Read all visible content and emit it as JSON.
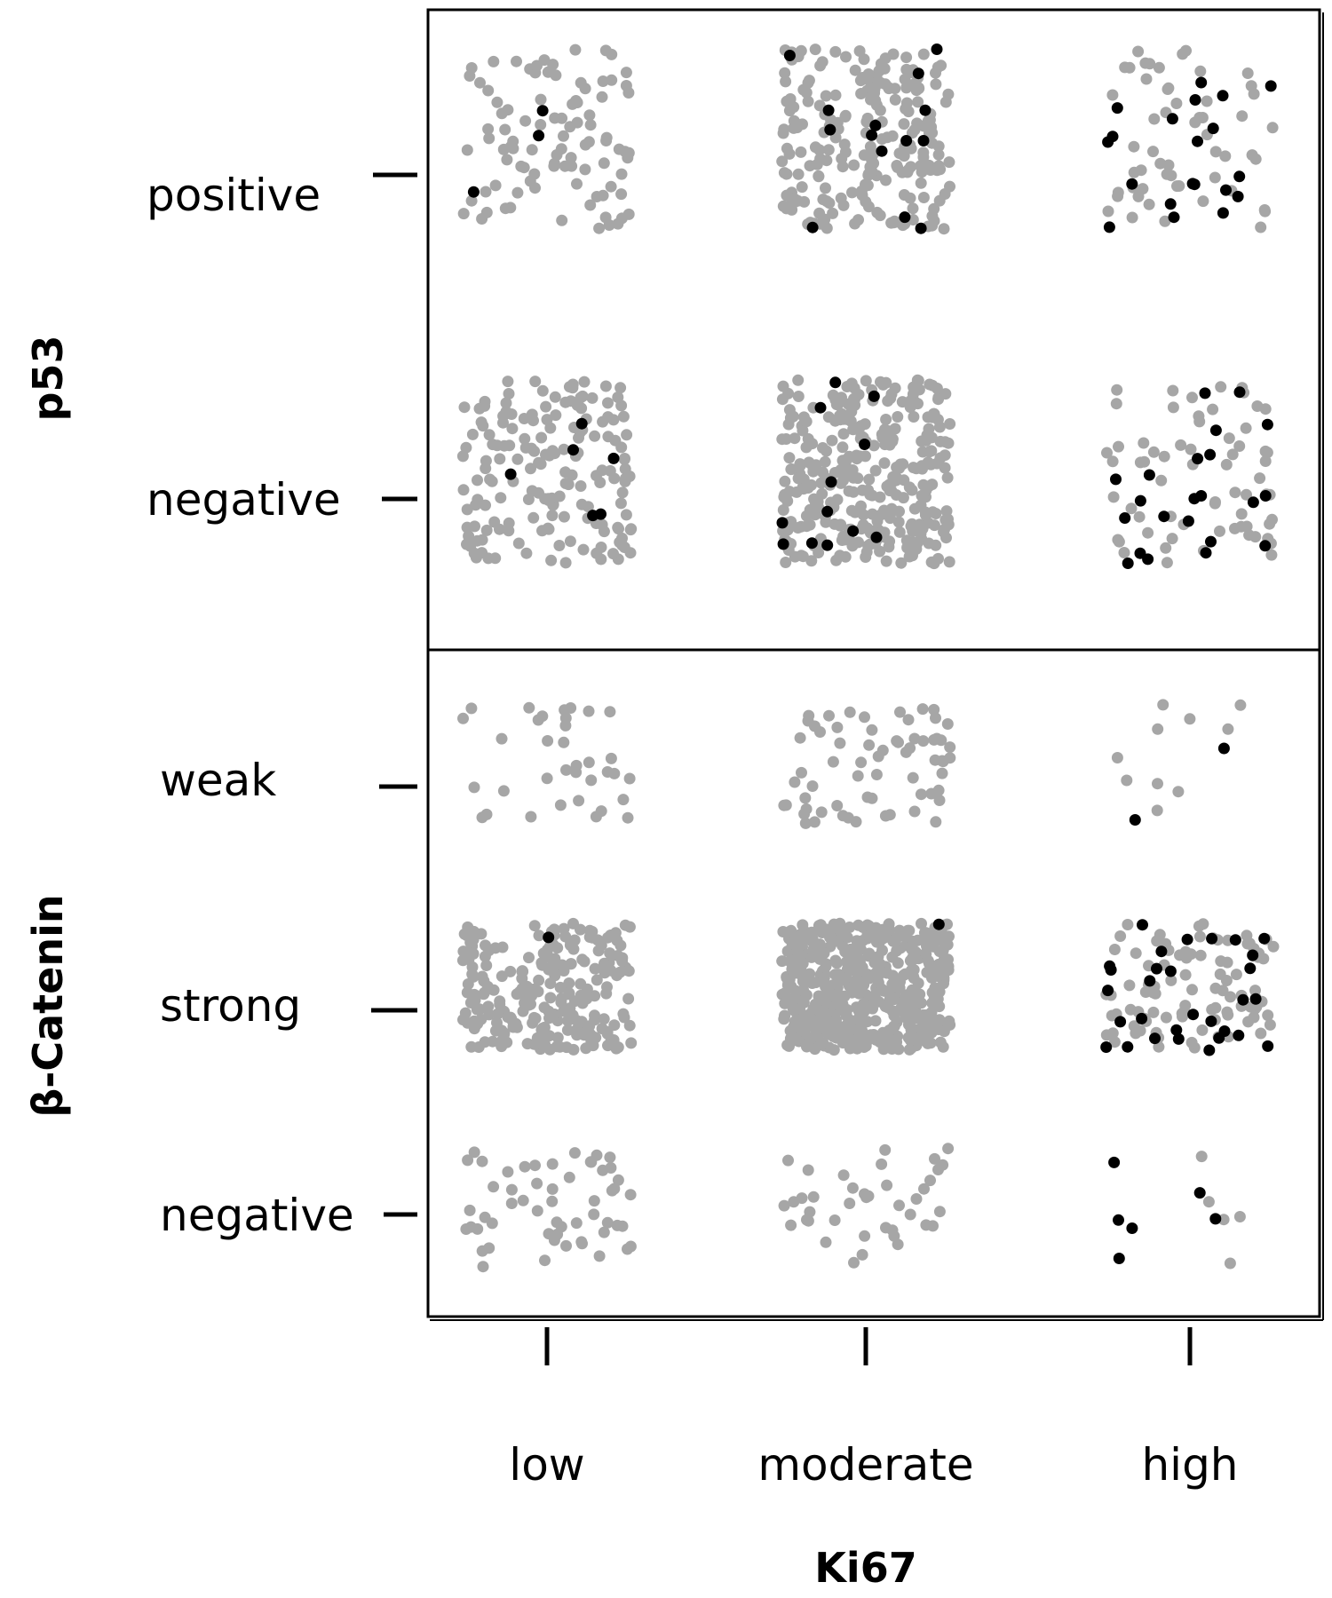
{
  "chart_data": {
    "type": "scatter",
    "x_axis": {
      "title": "Ki67",
      "categories": [
        "low",
        "moderate",
        "high"
      ]
    },
    "panels": [
      {
        "name": "p53",
        "y_axis_title": "p53",
        "categories": [
          "positive",
          "negative"
        ],
        "groups": [
          {
            "y": "positive",
            "x": "low",
            "gray": 95,
            "black": 3
          },
          {
            "y": "positive",
            "x": "moderate",
            "gray": 230,
            "black": 14
          },
          {
            "y": "positive",
            "x": "high",
            "gray": 55,
            "black": 20
          },
          {
            "y": "negative",
            "x": "low",
            "gray": 170,
            "black": 6
          },
          {
            "y": "negative",
            "x": "moderate",
            "gray": 330,
            "black": 12
          },
          {
            "y": "negative",
            "x": "high",
            "gray": 65,
            "black": 22
          }
        ]
      },
      {
        "name": "β-Catenin",
        "y_axis_title": "β-Catenin",
        "categories": [
          "weak",
          "strong",
          "negative"
        ],
        "groups": [
          {
            "y": "weak",
            "x": "low",
            "gray": 35,
            "black": 0
          },
          {
            "y": "weak",
            "x": "moderate",
            "gray": 65,
            "black": 0
          },
          {
            "y": "weak",
            "x": "high",
            "gray": 10,
            "black": 2
          },
          {
            "y": "strong",
            "x": "low",
            "gray": 230,
            "black": 1
          },
          {
            "y": "strong",
            "x": "moderate",
            "gray": 520,
            "black": 1
          },
          {
            "y": "strong",
            "x": "high",
            "gray": 95,
            "black": 30
          },
          {
            "y": "negative",
            "x": "low",
            "gray": 55,
            "black": 0
          },
          {
            "y": "negative",
            "x": "moderate",
            "gray": 40,
            "black": 0
          },
          {
            "y": "negative",
            "x": "high",
            "gray": 5,
            "black": 6
          }
        ]
      }
    ],
    "colors": {
      "gray": "#a6a6a6",
      "black": "#000000"
    }
  }
}
